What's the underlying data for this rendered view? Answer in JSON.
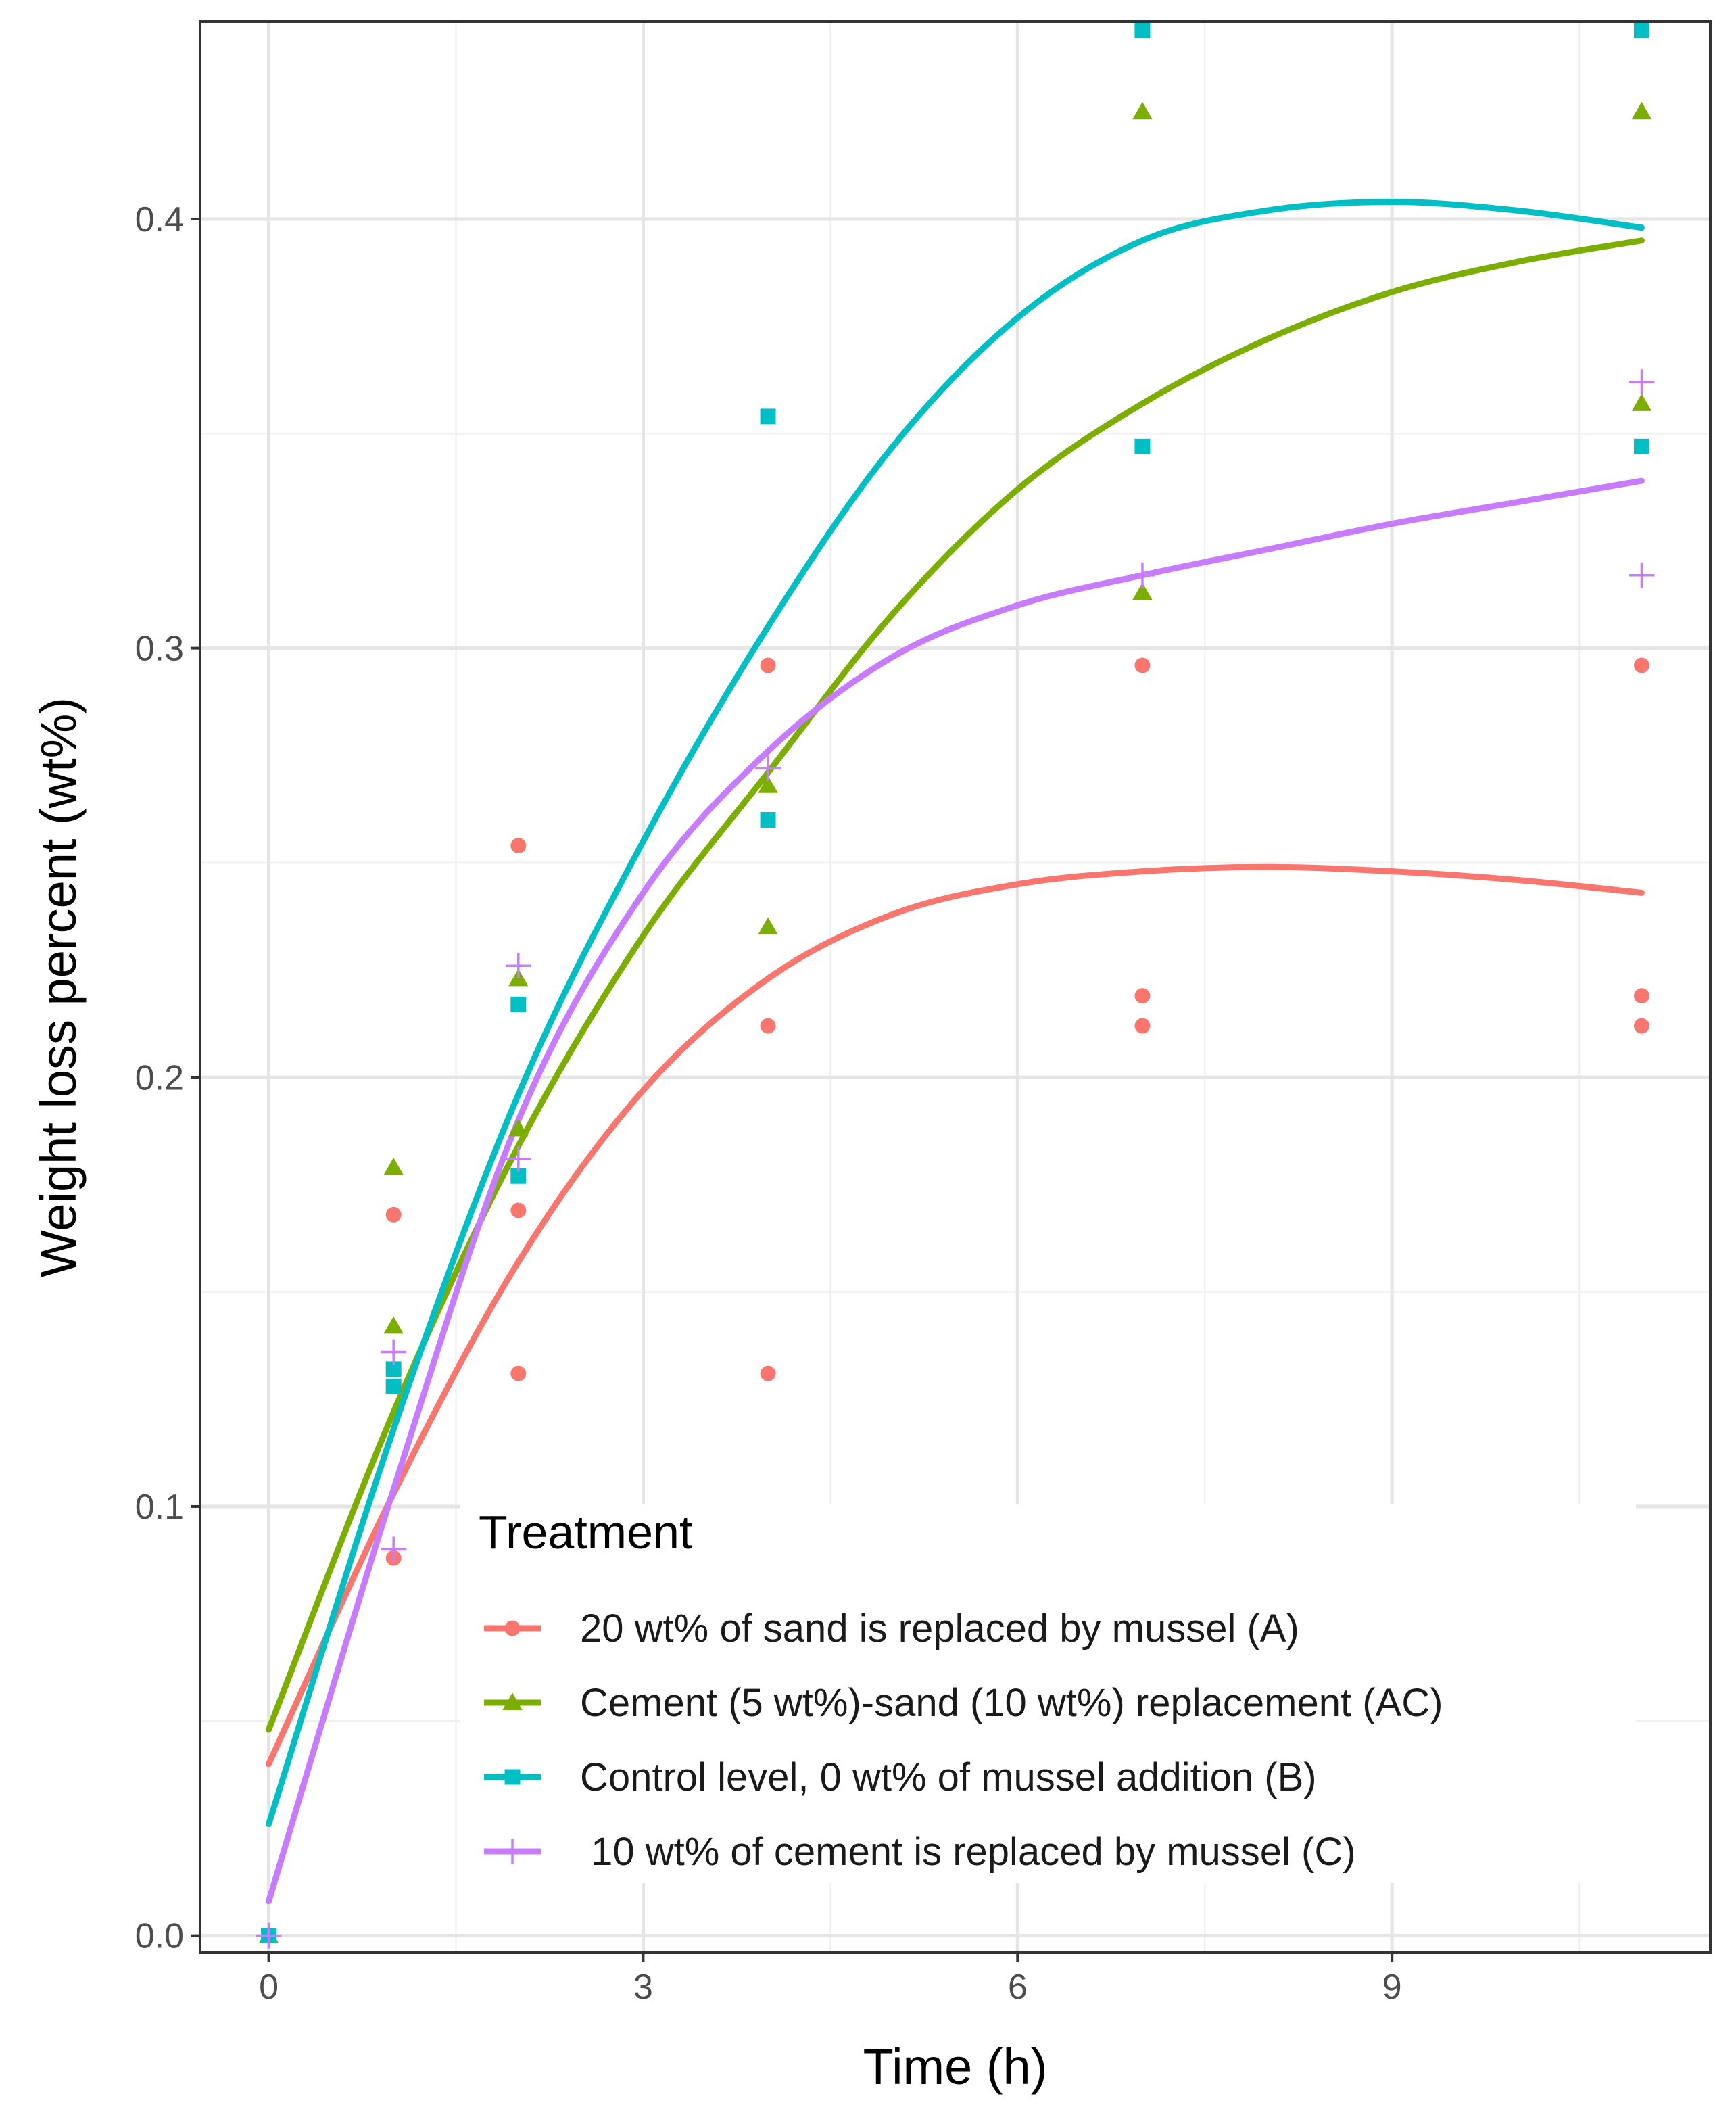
{
  "chart_data": {
    "type": "scatter",
    "title": "",
    "xlabel": "Time (h)",
    "ylabel": "Weight loss percent (wt%)",
    "xlim": [
      -0.55,
      11.55
    ],
    "ylim": [
      -0.004,
      0.446
    ],
    "x_ticks": [
      0,
      3,
      6,
      9
    ],
    "x_tick_labels": [
      "0",
      "3",
      "6",
      "9"
    ],
    "y_ticks": [
      0.0,
      0.1,
      0.2,
      0.3,
      0.4
    ],
    "y_tick_labels": [
      "0.0",
      "0.1",
      "0.2",
      "0.3",
      "0.4"
    ],
    "grid": true,
    "legend": {
      "title": "Treatment",
      "position": "bottom-right inside"
    },
    "series": [
      {
        "name": "20 wt% of sand is replaced by mussel (A)",
        "color": "#F8766D",
        "marker": "circle",
        "points": [
          [
            0,
            0.0
          ],
          [
            1,
            0.168
          ],
          [
            1,
            0.128
          ],
          [
            1,
            0.088
          ],
          [
            2,
            0.254
          ],
          [
            2,
            0.169
          ],
          [
            2,
            0.131
          ],
          [
            4,
            0.296
          ],
          [
            4,
            0.212
          ],
          [
            4,
            0.131
          ],
          [
            7,
            0.296
          ],
          [
            7,
            0.219
          ],
          [
            7,
            0.212
          ],
          [
            11,
            0.296
          ],
          [
            11,
            0.219
          ],
          [
            11,
            0.212
          ]
        ],
        "fit": {
          "x": [
            0,
            1,
            2,
            3,
            4,
            5,
            6,
            7,
            8,
            9,
            10,
            11
          ],
          "y": [
            0.04,
            0.103,
            0.157,
            0.197,
            0.223,
            0.238,
            0.245,
            0.248,
            0.249,
            0.248,
            0.246,
            0.243
          ]
        }
      },
      {
        "name": "Cement (5 wt%)-sand (10 wt%) replacement (AC)",
        "color": "#7CAE00",
        "marker": "triangle",
        "points": [
          [
            0,
            0.0
          ],
          [
            1,
            0.179
          ],
          [
            1,
            0.142
          ],
          [
            2,
            0.223
          ],
          [
            2,
            0.188
          ],
          [
            4,
            0.268
          ],
          [
            4,
            0.235
          ],
          [
            7,
            0.425
          ],
          [
            7,
            0.313
          ],
          [
            11,
            0.425
          ],
          [
            11,
            0.357
          ]
        ],
        "fit": {
          "x": [
            0,
            1,
            2,
            3,
            4,
            5,
            6,
            7,
            8,
            9,
            10,
            11
          ],
          "y": [
            0.048,
            0.122,
            0.184,
            0.233,
            0.271,
            0.308,
            0.337,
            0.357,
            0.372,
            0.383,
            0.39,
            0.395
          ]
        }
      },
      {
        "name": "Control level, 0 wt% of mussel addition (B)",
        "color": "#00BFC4",
        "marker": "square",
        "points": [
          [
            0,
            0.0
          ],
          [
            1,
            0.132
          ],
          [
            1,
            0.128
          ],
          [
            2,
            0.217
          ],
          [
            2,
            0.177
          ],
          [
            4,
            0.354
          ],
          [
            4,
            0.26
          ],
          [
            7,
            0.444
          ],
          [
            7,
            0.347
          ],
          [
            11,
            0.444
          ],
          [
            11,
            0.347
          ]
        ],
        "fit": {
          "x": [
            0,
            1,
            2,
            3,
            4,
            5,
            6,
            7,
            8,
            9,
            10,
            11
          ],
          "y": [
            0.026,
            0.118,
            0.196,
            0.255,
            0.305,
            0.347,
            0.377,
            0.395,
            0.402,
            0.404,
            0.402,
            0.398
          ]
        }
      },
      {
        "name": " 10 wt% of cement is replaced by mussel (C)",
        "color": "#C77CFF",
        "marker": "plus",
        "points": [
          [
            0,
            0.0
          ],
          [
            1,
            0.136
          ],
          [
            1,
            0.09
          ],
          [
            2,
            0.226
          ],
          [
            2,
            0.181
          ],
          [
            4,
            0.272
          ],
          [
            7,
            0.317
          ],
          [
            11,
            0.362
          ],
          [
            11,
            0.317
          ]
        ],
        "fit": {
          "x": [
            0,
            1,
            2,
            3,
            4,
            5,
            6,
            7,
            8,
            9,
            10,
            11
          ],
          "y": [
            0.008,
            0.104,
            0.19,
            0.243,
            0.276,
            0.298,
            0.31,
            0.317,
            0.323,
            0.329,
            0.334,
            0.339
          ]
        }
      }
    ]
  }
}
